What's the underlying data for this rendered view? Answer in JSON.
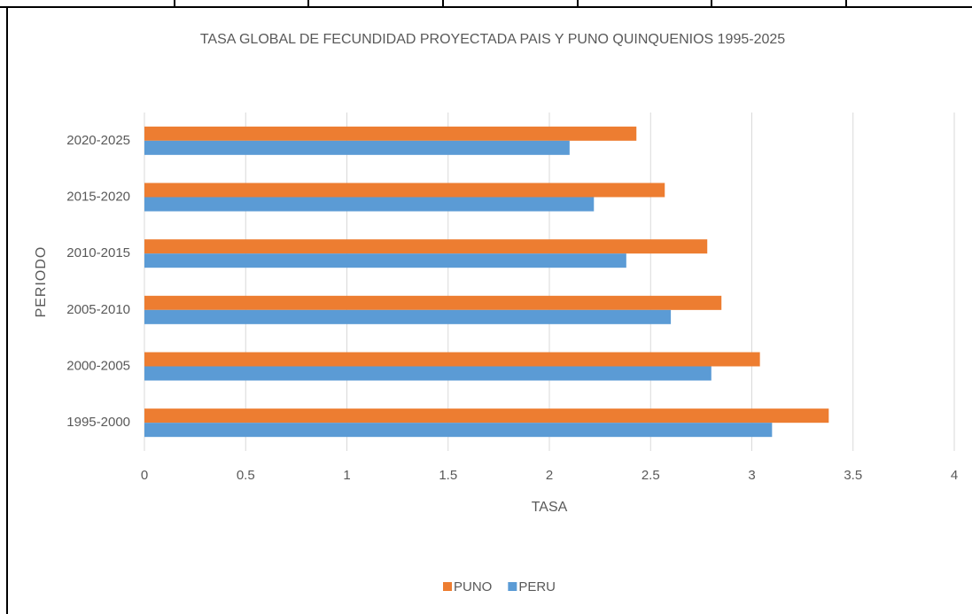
{
  "chart_data": {
    "type": "hbar",
    "title": "TASA GLOBAL DE FECUNDIDAD PROYECTADA PAIS Y PUNO QUINQUENIOS 1995-2025",
    "x_label": "TASA",
    "y_label": "PERIODO",
    "categories": [
      "1995-2000",
      "2000-2005",
      "2005-2010",
      "2010-2015",
      "2015-2020",
      "2020-2025"
    ],
    "series": [
      {
        "name": "PUNO",
        "color": "#ED7D31",
        "values": [
          3.38,
          3.04,
          2.85,
          2.78,
          2.57,
          2.43
        ]
      },
      {
        "name": "PERU",
        "color": "#5B9BD5",
        "values": [
          3.1,
          2.8,
          2.6,
          2.38,
          2.22,
          2.1
        ]
      }
    ],
    "xlim": [
      0,
      4
    ],
    "xticks": [
      0,
      0.5,
      1,
      1.5,
      2,
      2.5,
      3,
      3.5,
      4
    ],
    "grid": true,
    "legend": "bottom"
  }
}
